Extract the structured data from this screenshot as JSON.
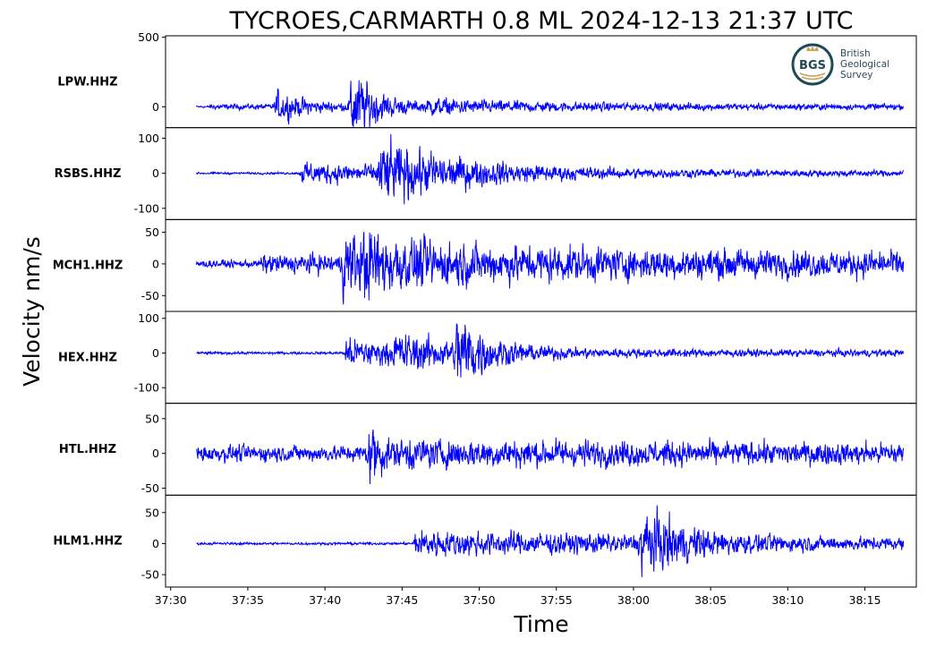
{
  "chart_data": {
    "type": "line",
    "title": "TYCROES,CARMARTH 0.8 ML   2024-12-13 21:37 UTC",
    "xlabel": "Time",
    "ylabel": "Velocity nm/s",
    "x_ticks": [
      "37:30",
      "37:35",
      "37:40",
      "37:45",
      "37:50",
      "37:55",
      "38:00",
      "38:05",
      "38:10",
      "38:15"
    ],
    "x_range_seconds": [
      -2,
      290
    ],
    "trace_start_second": 10,
    "trace_end_second": 285,
    "grid": false,
    "line_color": "#0000ff",
    "panels": [
      {
        "station": "LPW.HHZ",
        "ylim": [
          -150,
          510
        ],
        "yticks": [
          500,
          0
        ],
        "noise": 8,
        "emerg": 15,
        "bursts": [
          {
            "t": 41,
            "amp": 110,
            "decay": 12
          },
          {
            "t": 70,
            "amp": 280,
            "decay": 10
          },
          {
            "t": 100,
            "amp": 40,
            "decay": 60
          }
        ]
      },
      {
        "station": "RSBS.HHZ",
        "ylim": [
          -132,
          130
        ],
        "yticks": [
          100,
          0,
          -100
        ],
        "noise": 3,
        "emerg": 50,
        "bursts": [
          {
            "t": 51,
            "amp": 25,
            "decay": 80
          },
          {
            "t": 81,
            "amp": 75,
            "decay": 30
          }
        ]
      },
      {
        "station": "MCH1.HHZ",
        "ylim": [
          -75,
          70
        ],
        "yticks": [
          50,
          0,
          -50
        ],
        "noise": 6,
        "emerg": 35,
        "bursts": [
          {
            "t": 67,
            "amp": 45,
            "decay": 14
          },
          {
            "t": 75,
            "amp": 22,
            "decay": 150
          }
        ]
      },
      {
        "station": "HEX.HHZ",
        "ylim": [
          -145,
          120
        ],
        "yticks": [
          100,
          0,
          -100
        ],
        "noise": 4,
        "emerg": 68,
        "bursts": [
          {
            "t": 68,
            "amp": 35,
            "decay": 40
          },
          {
            "t": 87,
            "amp": 35,
            "decay": 25
          },
          {
            "t": 111,
            "amp": 100,
            "decay": 10
          }
        ]
      },
      {
        "station": "HTL.HHZ",
        "ylim": [
          -60,
          72
        ],
        "yticks": [
          50,
          0,
          -50
        ],
        "noise": 12,
        "emerg": 999,
        "bursts": [
          {
            "t": 77,
            "amp": 45,
            "decay": 6
          },
          {
            "t": 90,
            "amp": 10,
            "decay": 200
          }
        ]
      },
      {
        "station": "HLM1.HHZ",
        "ylim": [
          -70,
          78
        ],
        "yticks": [
          50,
          0,
          -50
        ],
        "noise": 2,
        "emerg": 94,
        "bursts": [
          {
            "t": 95,
            "amp": 18,
            "decay": 150
          },
          {
            "t": 183,
            "amp": 50,
            "decay": 16
          }
        ]
      }
    ]
  },
  "logo": {
    "initials": "BGS",
    "line1": "British",
    "line2": "Geological",
    "line3": "Survey"
  }
}
